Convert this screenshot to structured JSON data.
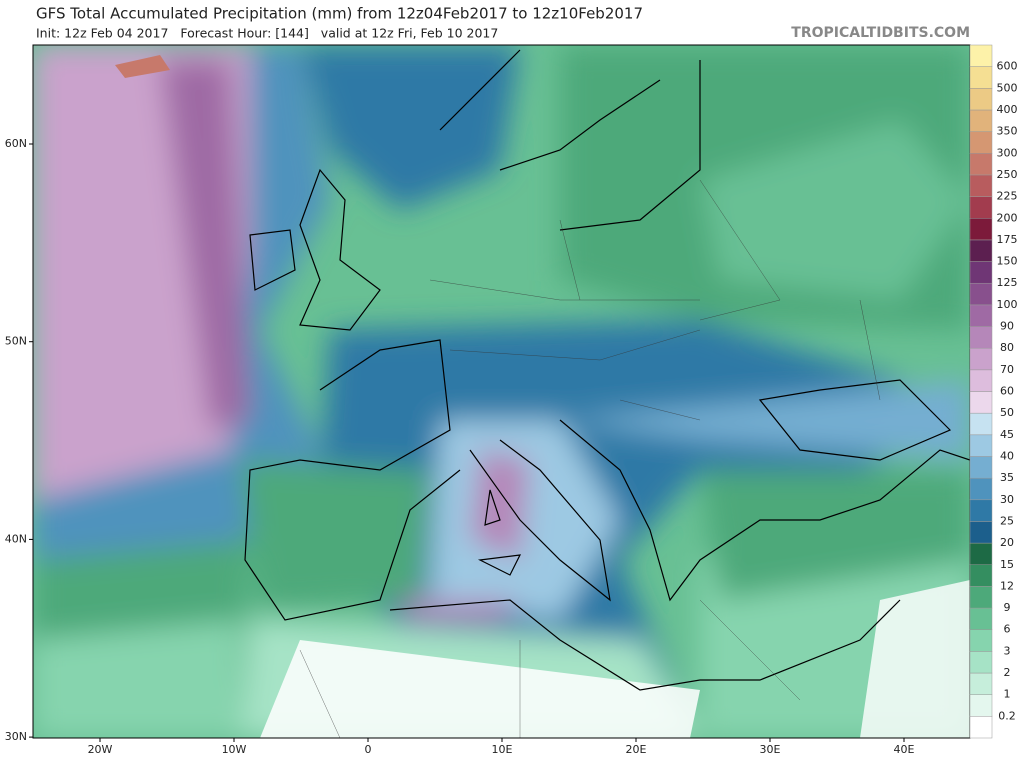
{
  "header": {
    "title": "GFS Total Accumulated Precipitation (mm) from 12z04Feb2017 to 12z10Feb2017",
    "subtitle": "Init: 12z Feb 04 2017   Forecast Hour: [144]   valid at 12z Fri, Feb 10 2017",
    "source": "TROPICALTIDBITS.COM"
  },
  "map": {
    "lat_labels": [
      "60N",
      "50N",
      "40N",
      "30N"
    ],
    "lon_labels": [
      "20W",
      "10W",
      "0",
      "10E",
      "20E",
      "30E",
      "40E"
    ]
  },
  "colorbar": [
    {
      "label": "0.2",
      "color": "#e4f7ee"
    },
    {
      "label": "1",
      "color": "#c6eedb"
    },
    {
      "label": "2",
      "color": "#a6e3c6"
    },
    {
      "label": "3",
      "color": "#86d4ae"
    },
    {
      "label": "6",
      "color": "#68c094"
    },
    {
      "label": "9",
      "color": "#4da97a"
    },
    {
      "label": "12",
      "color": "#348e60"
    },
    {
      "label": "15",
      "color": "#1d6a45"
    },
    {
      "label": "20",
      "color": "#1c5f8c"
    },
    {
      "label": "25",
      "color": "#2f79a6"
    },
    {
      "label": "30",
      "color": "#4f93bd"
    },
    {
      "label": "35",
      "color": "#75aed1"
    },
    {
      "label": "40",
      "color": "#9dc9e3"
    },
    {
      "label": "45",
      "color": "#c6e2f1"
    },
    {
      "label": "50",
      "color": "#ecd8ec"
    },
    {
      "label": "60",
      "color": "#ddbddd"
    },
    {
      "label": "70",
      "color": "#caa2cc"
    },
    {
      "label": "80",
      "color": "#b587b9"
    },
    {
      "label": "90",
      "color": "#9f6aa4"
    },
    {
      "label": "100",
      "color": "#88508d"
    },
    {
      "label": "125",
      "color": "#6f3675"
    },
    {
      "label": "150",
      "color": "#5c1f50"
    },
    {
      "label": "175",
      "color": "#7c1a3a"
    },
    {
      "label": "200",
      "color": "#a23c4e"
    },
    {
      "label": "225",
      "color": "#b85c5e"
    },
    {
      "label": "250",
      "color": "#c7796b"
    },
    {
      "label": "300",
      "color": "#d59772"
    },
    {
      "label": "350",
      "color": "#e1b37b"
    },
    {
      "label": "400",
      "color": "#ecca85"
    },
    {
      "label": "500",
      "color": "#f5df93"
    },
    {
      "label": "600",
      "color": "#fdf2a9"
    }
  ]
}
